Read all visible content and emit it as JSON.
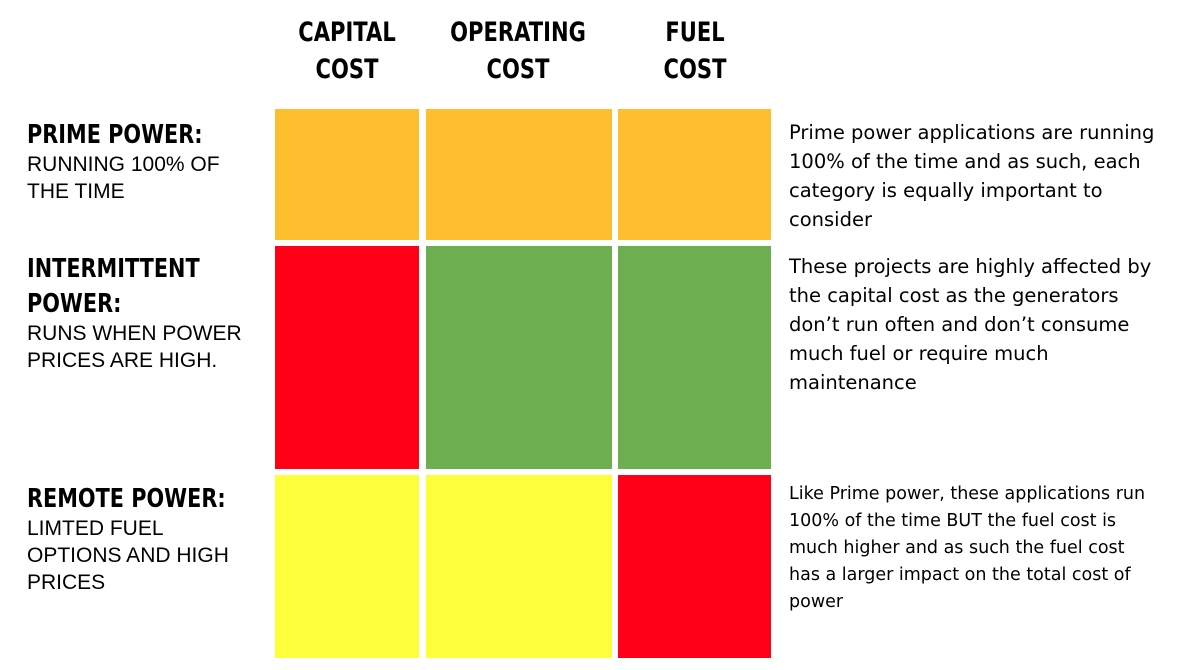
{
  "columns": [
    {
      "label": "CAPITAL\nCOST"
    },
    {
      "label": "OPERATING\nCOST"
    },
    {
      "label": "FUEL\nCOST"
    }
  ],
  "rows": [
    {
      "title": "PRIME POWER:",
      "subtitle": "RUNNING 100% OF\nTHE TIME",
      "description": "Prime power applications are running\n100% of the time and as such, each\ncategory is equally important to\nconsider",
      "cells": [
        "orange",
        "orange",
        "orange"
      ]
    },
    {
      "title": "INTERMITTENT\nPOWER:",
      "subtitle": "RUNS WHEN POWER\nPRICES ARE HIGH.",
      "description": "These projects are highly affected by\nthe capital cost as the generators\ndon’t run often and don’t consume\nmuch fuel or require much\nmaintenance",
      "cells": [
        "red",
        "green",
        "green"
      ]
    },
    {
      "title": "REMOTE POWER:",
      "subtitle": "LIMTED FUEL\nOPTIONS AND HIGH\nPRICES",
      "description": "Like Prime power, these applications run\n100% of the time BUT the fuel cost is\nmuch higher and as such the fuel cost\nhas a larger impact on the total cost of\npower",
      "cells": [
        "yellow",
        "yellow",
        "red"
      ]
    }
  ],
  "colors": {
    "orange": "#FDBF2D",
    "red": "#FF0016",
    "green": "#6DAF50",
    "yellow": "#FDFF3B"
  }
}
